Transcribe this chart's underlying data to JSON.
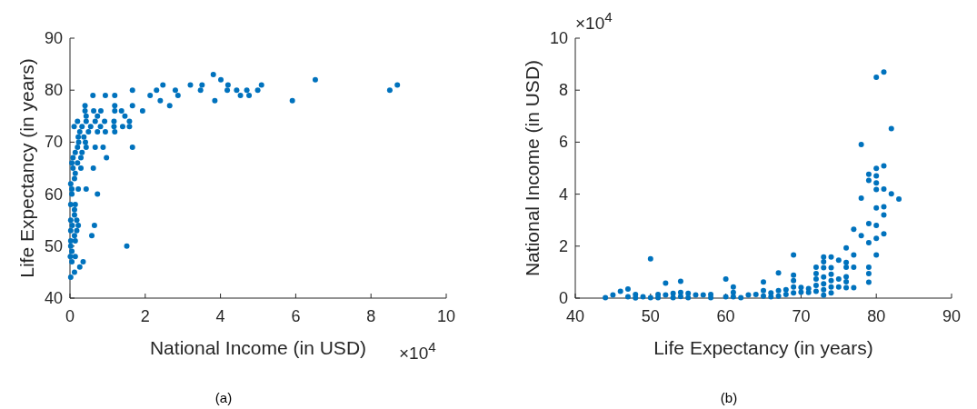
{
  "chart_data": [
    {
      "type": "scatter",
      "color": "#0072bd",
      "marker": "circle",
      "xlabel": "National Income (in USD)",
      "ylabel": "Life Expectancy (in years)",
      "annotations": [
        "×10$^{4}$",
        "(a)"
      ],
      "xlim": [
        0,
        10
      ],
      "ylim": [
        40,
        90
      ],
      "xticks": [
        0,
        2,
        4,
        6,
        8,
        10
      ],
      "yticks": [
        40,
        50,
        60,
        70,
        80,
        90
      ],
      "x": [
        0.02,
        0.12,
        0.26,
        0.35,
        0.05,
        0.14,
        0.01,
        0.05,
        1.51,
        0.02,
        0.14,
        0.02,
        0.58,
        0.12,
        0.18,
        0.02,
        0.65,
        0.22,
        0.06,
        0.18,
        0.02,
        0.12,
        0.12,
        0.14,
        0.02,
        0.73,
        0.05,
        0.43,
        0.22,
        0.05,
        0.02,
        0.12,
        0.14,
        0.62,
        0.29,
        0.08,
        0.2,
        0.05,
        0.97,
        0.29,
        0.08,
        0.32,
        0.14,
        1.66,
        0.88,
        0.67,
        0.43,
        0.2,
        0.41,
        0.23,
        0.37,
        0.22,
        1.19,
        0.94,
        0.73,
        0.49,
        0.26,
        1.58,
        1.4,
        1.17,
        0.81,
        0.55,
        0.32,
        0.11,
        1.58,
        1.17,
        0.92,
        0.67,
        0.43,
        0.2,
        1.46,
        0.73,
        0.43,
        1.93,
        1.37,
        1.19,
        0.82,
        0.63,
        0.4,
        2.65,
        1.66,
        1.19,
        0.4,
        5.91,
        3.85,
        2.4,
        4.76,
        4.53,
        2.87,
        2.13,
        1.19,
        0.94,
        0.61,
        4.99,
        4.7,
        4.43,
        4.18,
        3.47,
        2.8,
        2.3,
        1.66,
        8.5,
        5.09,
        4.2,
        3.51,
        3.2,
        2.47,
        8.7,
        6.52,
        4.01,
        3.81
      ],
      "values": [
        44,
        45,
        46,
        47,
        47,
        48,
        48,
        49,
        50,
        50,
        51,
        51,
        52,
        52,
        53,
        53,
        54,
        54,
        54,
        55,
        55,
        56,
        57,
        58,
        58,
        60,
        60,
        61,
        61,
        61,
        62,
        63,
        64,
        65,
        65,
        65,
        66,
        66,
        67,
        67,
        67,
        68,
        68,
        69,
        69,
        69,
        69,
        69,
        70,
        70,
        71,
        71,
        72,
        72,
        72,
        72,
        72,
        73,
        73,
        73,
        73,
        73,
        73,
        73,
        74,
        74,
        74,
        74,
        74,
        74,
        75,
        75,
        75,
        76,
        76,
        76,
        76,
        76,
        76,
        77,
        77,
        77,
        77,
        78,
        78,
        78,
        79,
        79,
        79,
        79,
        79,
        79,
        79,
        80,
        80,
        80,
        80,
        80,
        80,
        80,
        80,
        80,
        81,
        81,
        81,
        81,
        81,
        81,
        82,
        82,
        83
      ]
    },
    {
      "type": "scatter",
      "color": "#0072bd",
      "marker": "circle",
      "xlabel": "Life Expectancy (in years)",
      "ylabel": "National Income (in USD)",
      "annotations": [
        "×10$^{4}$",
        "(b)"
      ],
      "xlim": [
        40,
        90
      ],
      "ylim": [
        0,
        10
      ],
      "xticks": [
        40,
        50,
        60,
        70,
        80,
        90
      ],
      "yticks": [
        0,
        2,
        4,
        6,
        8,
        10
      ],
      "x": [
        44,
        45,
        46,
        47,
        47,
        48,
        48,
        49,
        50,
        50,
        51,
        51,
        52,
        52,
        53,
        53,
        54,
        54,
        54,
        55,
        55,
        56,
        57,
        58,
        58,
        60,
        60,
        61,
        61,
        61,
        62,
        63,
        64,
        65,
        65,
        65,
        66,
        66,
        67,
        67,
        67,
        68,
        68,
        69,
        69,
        69,
        69,
        69,
        70,
        70,
        71,
        71,
        72,
        72,
        72,
        72,
        72,
        73,
        73,
        73,
        73,
        73,
        73,
        73,
        74,
        74,
        74,
        74,
        74,
        74,
        75,
        75,
        75,
        76,
        76,
        76,
        76,
        76,
        76,
        77,
        77,
        77,
        77,
        78,
        78,
        78,
        79,
        79,
        79,
        79,
        79,
        79,
        79,
        80,
        80,
        80,
        80,
        80,
        80,
        80,
        80,
        80,
        81,
        81,
        81,
        81,
        81,
        81,
        82,
        82,
        83
      ],
      "values": [
        0.02,
        0.12,
        0.26,
        0.35,
        0.05,
        0.14,
        0.01,
        0.05,
        1.51,
        0.02,
        0.14,
        0.02,
        0.58,
        0.12,
        0.18,
        0.02,
        0.65,
        0.22,
        0.06,
        0.18,
        0.02,
        0.12,
        0.12,
        0.14,
        0.02,
        0.73,
        0.05,
        0.43,
        0.22,
        0.05,
        0.02,
        0.12,
        0.14,
        0.62,
        0.29,
        0.08,
        0.2,
        0.05,
        0.97,
        0.29,
        0.08,
        0.32,
        0.14,
        1.66,
        0.88,
        0.67,
        0.43,
        0.2,
        0.41,
        0.23,
        0.37,
        0.22,
        1.19,
        0.94,
        0.73,
        0.49,
        0.26,
        1.58,
        1.4,
        1.17,
        0.81,
        0.55,
        0.32,
        0.11,
        1.58,
        1.17,
        0.92,
        0.67,
        0.43,
        0.2,
        1.46,
        0.73,
        0.43,
        1.93,
        1.37,
        1.19,
        0.82,
        0.63,
        0.4,
        2.65,
        1.66,
        1.19,
        0.4,
        5.91,
        3.85,
        2.4,
        4.76,
        4.53,
        2.87,
        2.13,
        1.19,
        0.94,
        0.61,
        4.99,
        4.7,
        4.43,
        4.18,
        3.47,
        2.8,
        2.3,
        1.66,
        8.5,
        5.09,
        4.2,
        3.51,
        3.2,
        2.47,
        8.7,
        6.52,
        4.01,
        3.81
      ]
    }
  ]
}
